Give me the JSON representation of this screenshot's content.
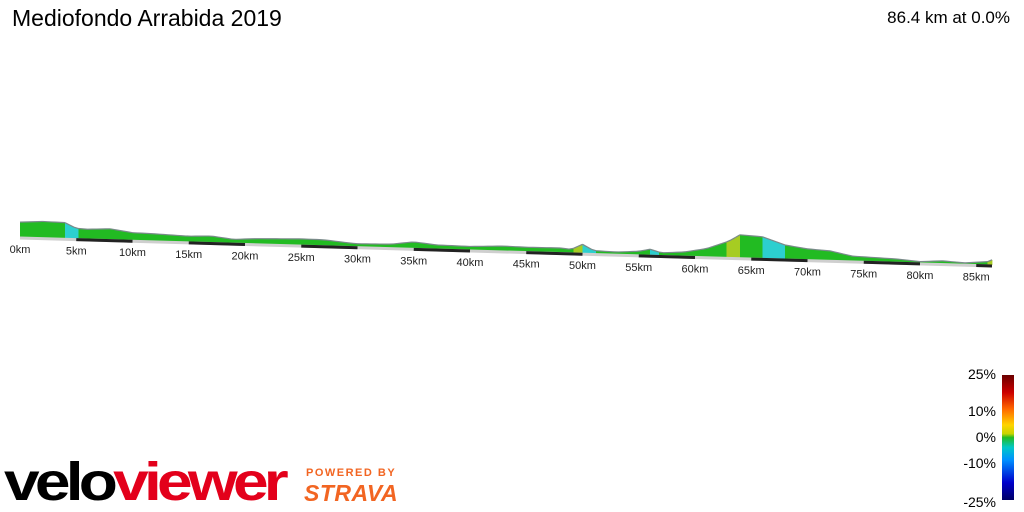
{
  "header": {
    "title": "Mediofondo Arrabida 2019",
    "summary": "86.4 km at 0.0%"
  },
  "chart_data": {
    "type": "area",
    "title": "Mediofondo Arrabida 2019",
    "total_distance_km": 86.4,
    "x_ticks": [
      "0km",
      "5km",
      "10km",
      "15km",
      "20km",
      "25km",
      "30km",
      "35km",
      "40km",
      "45km",
      "50km",
      "55km",
      "60km",
      "65km",
      "70km",
      "75km",
      "80km",
      "85km"
    ],
    "distance_km": [
      0,
      2,
      4,
      5,
      6,
      8,
      10,
      12,
      15,
      17,
      19,
      21,
      23,
      25,
      27,
      29,
      30,
      33,
      35,
      37,
      40,
      43,
      45,
      48,
      49,
      50,
      51,
      53,
      55,
      56,
      57,
      59,
      61,
      63,
      64,
      66,
      68,
      70,
      72,
      74,
      76,
      78,
      80,
      82,
      84,
      86,
      86.4
    ],
    "elevation_m": [
      55,
      60,
      58,
      38,
      36,
      40,
      28,
      26,
      21,
      24,
      14,
      19,
      21,
      23,
      22,
      14,
      11,
      13,
      24,
      15,
      13,
      18,
      16,
      17,
      13,
      33,
      11,
      8,
      13,
      22,
      10,
      15,
      30,
      60,
      85,
      80,
      52,
      40,
      35,
      18,
      15,
      12,
      5,
      10,
      5,
      12,
      19
    ],
    "gradient_legend": {
      "labels": [
        "25%",
        "10%",
        "0%",
        "-10%",
        "-25%"
      ],
      "colors": [
        "#6a0000",
        "#ff6600",
        "#22bb22",
        "#00c8c8",
        "#000066"
      ]
    }
  },
  "branding": {
    "logo": "veloviewer",
    "powered_by": "POWERED BY",
    "strava": "STRAVA"
  }
}
